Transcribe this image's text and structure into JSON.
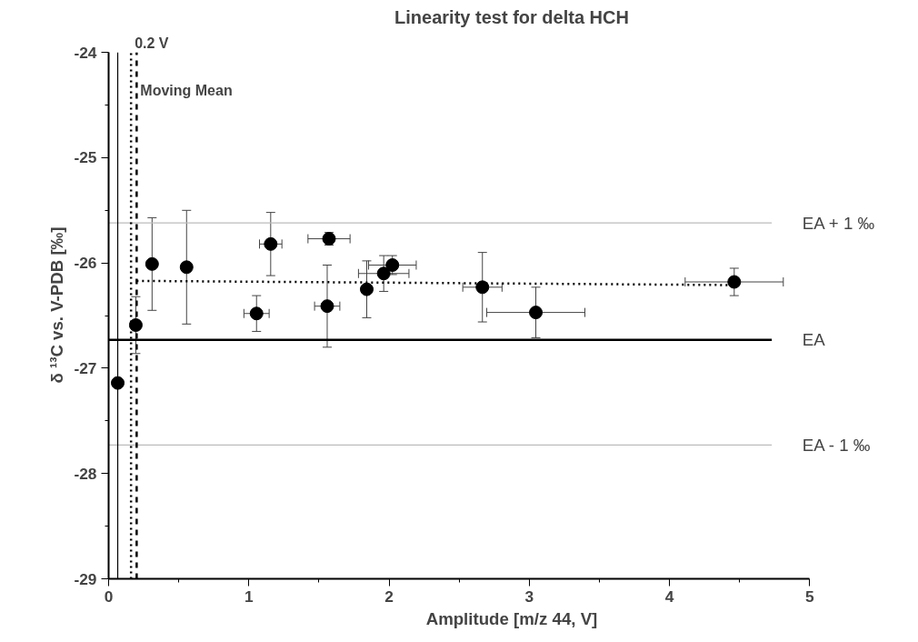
{
  "chart_data": {
    "type": "scatter",
    "title": "Linearity test for delta HCH",
    "xlabel": "Amplitude [m/z 44, V]",
    "ylabel": "δ ¹³C vs. V-PDB [‰]",
    "xlim": [
      0,
      5
    ],
    "ylim": [
      -29,
      -24
    ],
    "xticks": [
      0,
      1,
      2,
      3,
      4,
      5
    ],
    "yticks": [
      -29,
      -28,
      -27,
      -26,
      -25,
      -24
    ],
    "grid": false,
    "marker": "circle",
    "series": [
      {
        "color": "#000000",
        "x": [
          0.065,
          0.194,
          0.31,
          0.556,
          1.055,
          1.156,
          1.572,
          1.559,
          1.841,
          1.962,
          2.024,
          2.666,
          3.047,
          4.462
        ],
        "values": [
          -27.14,
          -26.59,
          -26.01,
          -26.04,
          -26.48,
          -25.82,
          -25.77,
          -26.41,
          -26.25,
          -26.1,
          -26.02,
          -26.23,
          -26.47,
          -26.18
        ],
        "errors": [
          null,
          0.27,
          0.44,
          0.54,
          0.17,
          0.3,
          0.06,
          0.39,
          0.27,
          0.17,
          0.09,
          0.33,
          0.24,
          0.13
        ],
        "xerrors": [
          null,
          null,
          null,
          null,
          0.09,
          0.08,
          0.15,
          0.09,
          null,
          0.18,
          0.17,
          0.14,
          0.35,
          0.35
        ]
      },
      {
        "type": "line",
        "color": "#000000",
        "line_style": "dotted",
        "marker": "none",
        "x": [
          0.2,
          4.47
        ],
        "values": [
          -26.17,
          -26.21
        ]
      }
    ],
    "ref_lines": [
      {
        "axis": "y",
        "value": -25.62,
        "label": "EA + 1 ‰",
        "color": "#bbbbbb",
        "line_style": "solid"
      },
      {
        "axis": "y",
        "value": -26.73,
        "label": "EA",
        "color": "#000000",
        "line_style": "solid"
      },
      {
        "axis": "y",
        "value": -27.73,
        "label": "EA - 1 ‰",
        "color": "#bbbbbb",
        "line_style": "solid"
      },
      {
        "axis": "x",
        "value": 0.065,
        "color": "#000000",
        "line_style": "solid"
      },
      {
        "axis": "x",
        "value": 0.16,
        "label": "0.2 V",
        "color": "#000000",
        "line_style": "dotted"
      },
      {
        "axis": "x",
        "value": 0.2,
        "label": "Moving Mean",
        "color": "#000000",
        "line_style": "dashed"
      }
    ]
  }
}
